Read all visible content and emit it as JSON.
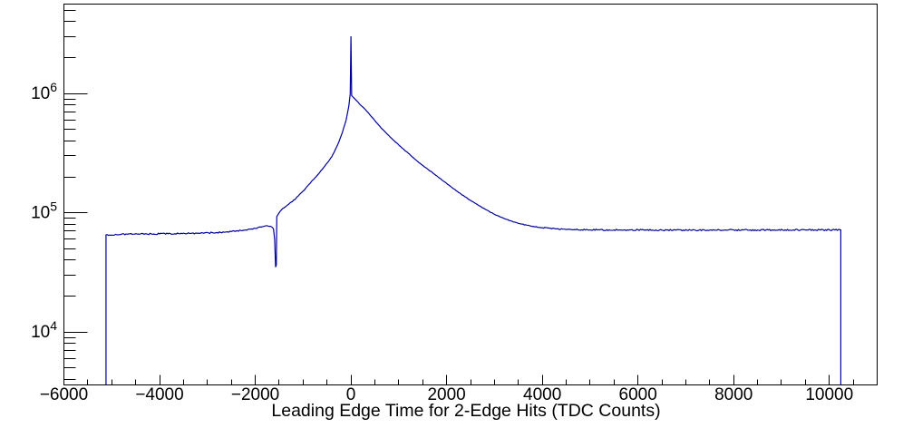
{
  "chart_data": {
    "type": "line",
    "histogram": true,
    "title": "",
    "xlabel": "Leading Edge Time for 2-Edge Hits (TDC Counts)",
    "ylabel": "",
    "xlim": [
      -6000,
      11000
    ],
    "ylim": [
      3600,
      5620000
    ],
    "yscale": "log",
    "grid": false,
    "legend": false,
    "background": "#ffffff",
    "axis_color": "#000000",
    "line_color": "#000099",
    "data_x_range": [
      -5120,
      10240
    ],
    "peak": {
      "x": 0,
      "spike_value": 3000000,
      "curve_value": 1000000
    },
    "notch": {
      "x": -1570,
      "min_value": 35000
    },
    "left_plateau_value": 66000,
    "right_plateau_value": 71700,
    "xticks": {
      "major_values": [
        -6000,
        -4000,
        -2000,
        0,
        2000,
        4000,
        6000,
        8000,
        10000
      ],
      "major_labels": [
        "−6000",
        "−4000",
        "−2000",
        "0",
        "2000",
        "4000",
        "6000",
        "8000",
        "10000"
      ],
      "minor_step": 500
    },
    "yticks": {
      "major_exponents": [
        4,
        5,
        6
      ],
      "major_labels": [
        "10^4",
        "10^5",
        "10^6"
      ],
      "log_minors": true
    },
    "sample_step": 25,
    "series": [
      {
        "name": "leading_edge_time_2edge_hits",
        "points": [
          [
            -5120,
            3600,
            0
          ],
          [
            -5120,
            65300,
            0.006
          ],
          [
            -4800,
            66000,
            0.006
          ],
          [
            -4400,
            66300,
            0.006
          ],
          [
            -4000,
            66500,
            0.006
          ],
          [
            -3600,
            66800,
            0.006
          ],
          [
            -3200,
            67300,
            0.006
          ],
          [
            -2800,
            68300,
            0.006
          ],
          [
            -2500,
            69500,
            0.005
          ],
          [
            -2200,
            71800,
            0.004
          ],
          [
            -2000,
            74000,
            0.004
          ],
          [
            -1850,
            76500,
            0.003
          ],
          [
            -1760,
            78000,
            0.003
          ],
          [
            -1680,
            77000,
            0.003
          ],
          [
            -1620,
            73500,
            0.002
          ],
          [
            -1595,
            60000,
            0
          ],
          [
            -1575,
            35000,
            0
          ],
          [
            -1560,
            36500,
            0
          ],
          [
            -1550,
            93000,
            0
          ],
          [
            -1500,
            100000,
            0.003
          ],
          [
            -1450,
            106000,
            0.003
          ],
          [
            -1300,
            118000,
            0.003
          ],
          [
            -1150,
            132000,
            0.003
          ],
          [
            -1000,
            152000,
            0.003
          ],
          [
            -850,
            177000,
            0.003
          ],
          [
            -700,
            207000,
            0.003
          ],
          [
            -550,
            245000,
            0.003
          ],
          [
            -400,
            295000,
            0.003
          ],
          [
            -280,
            370000,
            0.003
          ],
          [
            -180,
            470000,
            0.002
          ],
          [
            -100,
            600000,
            0.002
          ],
          [
            -45,
            780000,
            0.002
          ],
          [
            -15,
            990000,
            0
          ],
          [
            0,
            3020000,
            0
          ],
          [
            15,
            960000,
            0
          ],
          [
            100,
            885000,
            0.002
          ],
          [
            200,
            800000,
            0.002
          ],
          [
            300,
            735000,
            0.002
          ],
          [
            400,
            660000,
            0.002
          ],
          [
            500,
            592000,
            0.002
          ],
          [
            650,
            505000,
            0.002
          ],
          [
            800,
            440000,
            0.002
          ],
          [
            1000,
            370000,
            0.002
          ],
          [
            1200,
            315000,
            0.002
          ],
          [
            1400,
            268000,
            0.002
          ],
          [
            1600,
            233000,
            0.002
          ],
          [
            1800,
            203000,
            0.002
          ],
          [
            2000,
            176000,
            0.002
          ],
          [
            2250,
            148000,
            0.002
          ],
          [
            2500,
            127000,
            0.002
          ],
          [
            2750,
            110000,
            0.002
          ],
          [
            3000,
            97000,
            0.002
          ],
          [
            3250,
            88000,
            0.003
          ],
          [
            3500,
            81500,
            0.003
          ],
          [
            3750,
            77500,
            0.003
          ],
          [
            4000,
            75000,
            0.004
          ],
          [
            4300,
            73300,
            0.005
          ],
          [
            4600,
            72400,
            0.005
          ],
          [
            5000,
            71900,
            0.006
          ],
          [
            5500,
            71700,
            0.006
          ],
          [
            6500,
            71500,
            0.006
          ],
          [
            7500,
            71600,
            0.006
          ],
          [
            8500,
            71600,
            0.006
          ],
          [
            9500,
            71700,
            0.006
          ],
          [
            10240,
            71700,
            0
          ],
          [
            10240,
            3600,
            0
          ]
        ]
      }
    ]
  }
}
